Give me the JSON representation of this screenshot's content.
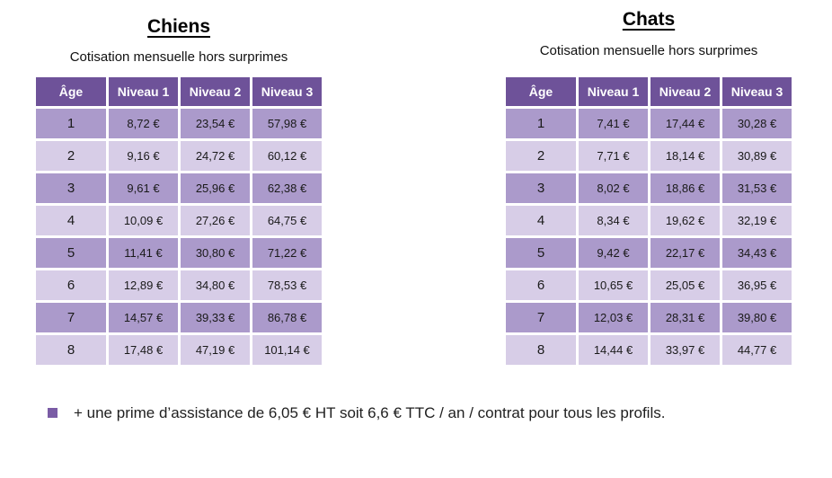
{
  "page": {
    "background": "#ffffff"
  },
  "colors": {
    "header_bg": "#6E5299",
    "row_dark": "#AB9ACB",
    "row_light": "#D7CDE7",
    "header_text": "#FFFFFF",
    "body_text": "#1A1A1A",
    "title_text": "#000000",
    "bullet": "#7A5CA5"
  },
  "tables": [
    {
      "title": "Chiens",
      "subtitle": "Cotisation mensuelle hors surprimes",
      "columns": [
        "Âge",
        "Niveau 1",
        "Niveau 2",
        "Niveau 3"
      ],
      "rows": [
        [
          "1",
          "8,72 €",
          "23,54 €",
          "57,98 €"
        ],
        [
          "2",
          "9,16 €",
          "24,72 €",
          "60,12 €"
        ],
        [
          "3",
          "9,61 €",
          "25,96 €",
          "62,38 €"
        ],
        [
          "4",
          "10,09 €",
          "27,26 €",
          "64,75 €"
        ],
        [
          "5",
          "11,41 €",
          "30,80 €",
          "71,22 €"
        ],
        [
          "6",
          "12,89 €",
          "34,80 €",
          "78,53 €"
        ],
        [
          "7",
          "14,57 €",
          "39,33 €",
          "86,78 €"
        ],
        [
          "8",
          "17,48 €",
          "47,19 €",
          "101,14 €"
        ]
      ]
    },
    {
      "title": "Chats",
      "subtitle": "Cotisation mensuelle hors surprimes",
      "columns": [
        "Âge",
        "Niveau 1",
        "Niveau 2",
        "Niveau 3"
      ],
      "rows": [
        [
          "1",
          "7,41 €",
          "17,44 €",
          "30,28 €"
        ],
        [
          "2",
          "7,71 €",
          "18,14 €",
          "30,89 €"
        ],
        [
          "3",
          "8,02 €",
          "18,86 €",
          "31,53 €"
        ],
        [
          "4",
          "8,34 €",
          "19,62 €",
          "32,19 €"
        ],
        [
          "5",
          "9,42 €",
          "22,17 €",
          "34,43 €"
        ],
        [
          "6",
          "10,65 €",
          "25,05 €",
          "36,95 €"
        ],
        [
          "7",
          "12,03 €",
          "28,31 €",
          "39,80 €"
        ],
        [
          "8",
          "14,44 €",
          "33,97 €",
          "44,77 €"
        ]
      ]
    }
  ],
  "footer": {
    "text": "+ une prime d’assistance de 6,05 € HT soit 6,6 € TTC / an / contrat pour tous les profils."
  }
}
